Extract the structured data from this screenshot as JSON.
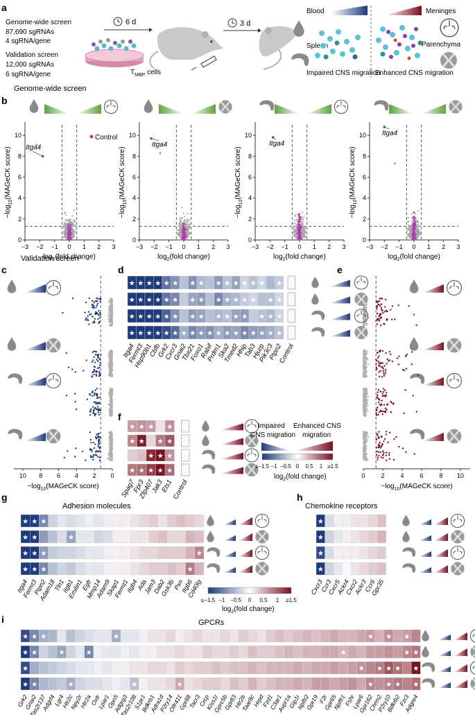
{
  "panels": {
    "a": {
      "letter": "a",
      "genome_screen": {
        "title": "Genome-wide screen",
        "line1": "87,690 sgRNAs",
        "line2": "4 sgRNA/gene"
      },
      "validation_screen": {
        "title": "Validation screen",
        "line1": "12,000 sgRNAs",
        "line2": "6 sgRNA/gene"
      },
      "timer1": "6 d",
      "timer2": "3 d",
      "cells_label_main": "T",
      "cells_label_sub": "MBP",
      "cells_label_tail": " cells",
      "blood": "Blood",
      "spleen": "Spleen",
      "meninges": "Meninges",
      "parenchyma": "Parenchyma",
      "impaired": "Impaired CNS migration",
      "enhanced": "Enhanced CNS migration"
    },
    "b": {
      "letter": "b",
      "section_title": "Genome-wide screen",
      "ylabel_prefix": "−log",
      "ylabel_sub": "10",
      "ylabel_suffix": "(MAGeCK score)",
      "xlabel_prefix": "log",
      "xlabel_sub": "2",
      "xlabel_suffix": "(fold change)",
      "legend_control": "Control",
      "highlight_gene": "Itga4"
    },
    "validation_title": "Validation screen",
    "c": {
      "letter": "c",
      "xlabel_prefix": "−log",
      "xlabel_sub": "10",
      "xlabel_suffix": "(MAGeCK score)"
    },
    "d": {
      "letter": "d",
      "genes": [
        "Itga4",
        "Fermt3",
        "Hsp90b1",
        "Cbfb",
        "Grk2",
        "Cxcr3",
        "Gnai2",
        "Tbx21",
        "Foxo1",
        "Rabif",
        "Prdm1",
        "Ska2",
        "Tmed2",
        "Hhip",
        "Tab3",
        "Hjurp",
        "Pik3c3",
        "Ptpn2"
      ],
      "control": "Control"
    },
    "e": {
      "letter": "e",
      "xlabel_prefix": "−log",
      "xlabel_sub": "10",
      "xlabel_suffix": "(MAGeCK score)"
    },
    "f": {
      "letter": "f",
      "genes": [
        "Spag7",
        "Fpr3",
        "Zfp407",
        "Jak3",
        "Ets1"
      ],
      "control": "Control"
    },
    "legend": {
      "impaired_line1": "Impaired",
      "impaired_line2": "CNS migration",
      "enhanced_line1": "Enhanced CNS",
      "enhanced_line2": "migration",
      "ticks": [
        "≤−1.5",
        "−1",
        "−0.5",
        "0",
        "0.5",
        "1",
        "≥1.5"
      ],
      "label_prefix": "log",
      "label_sub": "2",
      "label_suffix": "(fold change)"
    },
    "g": {
      "letter": "g",
      "title": "Adhesion molecules",
      "genes": [
        "Itga4",
        "Fermt3",
        "Ptpn2",
        "Adam18",
        "Tln1",
        "Itgb1",
        "Emilin1",
        "Egfr",
        "Mmp14",
        "Adam9",
        "Skap1",
        "Fermt1",
        "Itgb4",
        "Ada",
        "Jam3",
        "Dab2",
        "Gsk3b",
        "Pxn",
        "Itgb6",
        "Cd40lg"
      ],
      "legend_ticks": [
        "≤−1.5",
        "−1",
        "−0.5",
        "0",
        "0.5",
        "1",
        "≥1.5"
      ],
      "legend_label_prefix": "log",
      "legend_label_sub": "2",
      "legend_label_suffix": "(fold change)"
    },
    "h": {
      "letter": "h",
      "title": "Chemokine receptors",
      "genes": [
        "Cxcr3",
        "Ccr3",
        "Cxcr5",
        "Ackr4",
        "Cxcr2",
        "Ackr3",
        "Ccr6",
        "Gpr35"
      ]
    },
    "i": {
      "letter": "i",
      "title": "GPCRs",
      "genes": [
        "Grk2",
        "Gnai2",
        "Tas2r137",
        "Adgrf4",
        "Lgr4",
        "Htr2c",
        "Npy2r",
        "Htr2a",
        "Oxtr",
        "Lpar1",
        "Opn5",
        "Adgrg3",
        "Tas2r108",
        "S1pr1",
        "Bdkrb1",
        "Adra1d",
        "P2ry14",
        "Olfr411",
        "Gpr88",
        "Tacr3",
        "Crcp",
        "Kiss1r",
        "Gprc5b",
        "Gpr83",
        "Htr2b",
        "Taar8c",
        "Hrpd",
        "Fzd1",
        "C3ar1",
        "Avpr1a",
        "Glp1r",
        "Npffr2",
        "Gpr19",
        "F2r",
        "Gpr65",
        "Npffr1",
        "Fshr",
        "Lpar6",
        "Gpr162",
        "Chrm2",
        "P2ry10",
        "Bdkrb2",
        "Fzr3",
        "Adgre4"
      ]
    }
  },
  "heatmaps": {
    "d": [
      [
        -1,
        -1,
        -1,
        -1,
        -0.7,
        -0.55,
        -0.3,
        -0.55,
        -0.35,
        -0.3,
        -0.5,
        -0.3,
        -0.45,
        -0.2,
        -0.3,
        -0.2,
        -0.35,
        -0.25
      ],
      [
        -1,
        -1,
        -1,
        -1,
        -0.7,
        -0.6,
        -0.25,
        -0.45,
        -0.5,
        -0.3,
        -0.6,
        -0.4,
        -0.35,
        -0.25,
        -0.2,
        -0.3,
        -0.3,
        -0.2
      ],
      [
        -1,
        -1,
        -1,
        -1,
        -0.8,
        -0.55,
        -0.3,
        -0.5,
        -0.45,
        -0.3,
        -0.35,
        -0.3,
        -0.45,
        -0.5,
        -0.25,
        -0.3,
        -0.35,
        -0.2
      ],
      [
        -1,
        -1,
        -1,
        -1,
        -0.9,
        -0.75,
        -0.4,
        -0.6,
        -0.5,
        -0.55,
        -0.4,
        -0.5,
        -0.45,
        -0.6,
        -0.5,
        -0.45,
        -0.4,
        -0.3
      ]
    ],
    "d_stars": [
      [
        1,
        1,
        1,
        1,
        1,
        1,
        0,
        1,
        1,
        0,
        1,
        1,
        1,
        1,
        1,
        1,
        0,
        1
      ],
      [
        1,
        1,
        1,
        1,
        1,
        1,
        0,
        1,
        1,
        0,
        1,
        1,
        1,
        1,
        1,
        0,
        1,
        1
      ],
      [
        1,
        1,
        1,
        1,
        1,
        1,
        0,
        1,
        1,
        0,
        1,
        1,
        1,
        1,
        0,
        1,
        1,
        1
      ],
      [
        1,
        1,
        1,
        1,
        1,
        1,
        1,
        1,
        1,
        1,
        1,
        1,
        1,
        1,
        1,
        1,
        1,
        1
      ]
    ],
    "f": [
      [
        0.4,
        0.45,
        0.4,
        0.1,
        0.45
      ],
      [
        0.5,
        0.95,
        0.15,
        0.55,
        0.7
      ],
      [
        0.2,
        0.25,
        0.9,
        1,
        0.45
      ],
      [
        0.55,
        0.6,
        0.8,
        1,
        0.6
      ]
    ],
    "f_stars": [
      [
        1,
        1,
        1,
        0,
        1
      ],
      [
        1,
        1,
        0,
        1,
        1
      ],
      [
        0,
        0,
        1,
        1,
        1
      ],
      [
        1,
        1,
        1,
        1,
        1
      ]
    ],
    "g": [
      [
        -1,
        -1,
        -0.6,
        -0.2,
        -0.1,
        -0.15,
        -0.1,
        -0.05,
        -0.1,
        -0.05,
        0.05,
        0.05,
        0.1,
        0.15,
        0.2,
        0.1,
        0.2,
        0.25,
        0.2,
        0.15
      ],
      [
        -1,
        -1,
        -0.5,
        -0.3,
        -0.15,
        -0.45,
        -0.1,
        -0.1,
        -0.2,
        -0.15,
        0.05,
        0.05,
        0.1,
        0.1,
        0.2,
        0.25,
        0.15,
        0.15,
        0.3,
        0.25
      ],
      [
        -1,
        -1,
        -0.5,
        -0.25,
        -0.2,
        -0.2,
        -0.15,
        -0.1,
        -0.1,
        -0.05,
        0.05,
        0.05,
        0.1,
        0.15,
        0.15,
        0.2,
        0.2,
        0.2,
        0.3,
        0.5
      ],
      [
        -1,
        -1,
        -0.6,
        -0.3,
        -0.2,
        -0.25,
        -0.15,
        -0.1,
        -0.1,
        -0.05,
        0.05,
        0.05,
        0.1,
        0.15,
        0.2,
        0.2,
        0.25,
        0.2,
        0.55,
        0.3
      ]
    ],
    "g_stars": [
      [
        1,
        1,
        1,
        0,
        0,
        0,
        0,
        0,
        0,
        0,
        0,
        0,
        0,
        0,
        0,
        0,
        0,
        0,
        0,
        0
      ],
      [
        1,
        1,
        0,
        0,
        0,
        1,
        0,
        0,
        0,
        0,
        0,
        0,
        0,
        0,
        0,
        0,
        0,
        0,
        0,
        0
      ],
      [
        1,
        1,
        1,
        0,
        0,
        0,
        0,
        0,
        0,
        0,
        0,
        0,
        0,
        0,
        0,
        0,
        0,
        0,
        0,
        1
      ],
      [
        1,
        1,
        1,
        0,
        0,
        0,
        0,
        0,
        0,
        0,
        0,
        0,
        0,
        0,
        0,
        0,
        0,
        0,
        1,
        0
      ]
    ],
    "h": [
      [
        -1,
        -0.15,
        -0.05,
        0.05,
        0.1,
        0.1,
        0.15,
        0.25
      ],
      [
        -1,
        -0.2,
        -0.1,
        0.05,
        0.1,
        0.15,
        0.2,
        0.3
      ],
      [
        -0.9,
        -0.15,
        -0.05,
        0.05,
        0.05,
        0.1,
        0.15,
        0.2
      ],
      [
        -1,
        -0.2,
        -0.1,
        0.0,
        0.1,
        0.15,
        0.2,
        0.25
      ]
    ],
    "h_stars": [
      [
        1,
        0,
        0,
        0,
        0,
        0,
        0,
        0
      ],
      [
        1,
        0,
        0,
        0,
        0,
        0,
        0,
        0
      ],
      [
        1,
        0,
        0,
        0,
        0,
        0,
        0,
        0
      ],
      [
        1,
        0,
        0,
        0,
        0,
        0,
        0,
        0
      ]
    ],
    "i": [
      [
        -0.9,
        -0.6,
        -0.4,
        -0.35,
        -0.1,
        -0.3,
        -0.2,
        -0.15,
        -0.1,
        -0.1,
        -0.4,
        -0.1,
        -0.1,
        -0.05,
        0.1,
        0.1,
        0.15,
        0.05,
        0.1,
        0.15,
        0.1,
        0.1,
        0.15,
        0.1,
        0.2,
        0.15,
        0.1,
        0.2,
        0.25,
        0.2,
        0.25,
        0.3,
        0.25,
        0.3,
        0.35,
        0.3,
        0.3,
        0.35,
        0.4,
        0.3,
        0.45,
        0.35,
        0.4,
        0.5
      ],
      [
        -1,
        -0.6,
        -0.2,
        -0.3,
        -0.45,
        -0.2,
        -0.1,
        -0.6,
        -0.05,
        -0.1,
        -0.1,
        -0.05,
        -0.1,
        0.05,
        0.05,
        0.1,
        0.1,
        0.15,
        0.1,
        0.1,
        0.2,
        0.15,
        0.15,
        0.2,
        0.15,
        0.25,
        0.2,
        0.2,
        0.25,
        0.3,
        0.25,
        0.3,
        0.3,
        0.35,
        0.35,
        0.3,
        0.35,
        0.3,
        0.4,
        0.4,
        0.45,
        0.4,
        0.5,
        0.55
      ],
      [
        -0.9,
        -0.4,
        -0.3,
        -0.25,
        -0.2,
        -0.15,
        -0.1,
        -0.1,
        -0.05,
        -0.1,
        -0.05,
        0.05,
        0.1,
        0.1,
        0.15,
        0.15,
        0.1,
        0.2,
        0.15,
        0.2,
        0.2,
        0.25,
        0.2,
        0.25,
        0.25,
        0.3,
        0.25,
        0.3,
        0.3,
        0.3,
        0.35,
        0.3,
        0.35,
        0.35,
        0.4,
        0.35,
        0.4,
        0.45,
        0.5,
        0.55,
        0.7,
        0.6,
        0.5,
        1
      ],
      [
        -1,
        -0.6,
        -0.35,
        -0.3,
        -0.25,
        -0.4,
        -0.2,
        -0.15,
        -0.15,
        -0.1,
        -0.05,
        -0.1,
        -0.3,
        0.05,
        0.1,
        0.1,
        0.15,
        0.35,
        0.1,
        0.15,
        0.2,
        0.2,
        0.15,
        0.25,
        0.2,
        0.3,
        0.2,
        0.25,
        0.3,
        0.3,
        0.35,
        0.3,
        0.4,
        0.4,
        0.35,
        0.4,
        0.45,
        0.35,
        0.5,
        0.45,
        0.5,
        0.55,
        0.5,
        0.6
      ]
    ],
    "i_stars": [
      [
        1,
        1,
        1,
        0,
        0,
        0,
        0,
        0,
        0,
        0,
        1,
        0,
        0,
        0,
        0,
        0,
        0,
        0,
        0,
        0,
        0,
        0,
        0,
        0,
        0,
        0,
        0,
        0,
        0,
        0,
        0,
        0,
        0,
        0,
        0,
        0,
        0,
        0,
        1,
        0,
        1,
        0,
        1,
        0
      ],
      [
        1,
        1,
        0,
        0,
        1,
        0,
        0,
        1,
        0,
        0,
        0,
        0,
        0,
        0,
        0,
        0,
        0,
        0,
        0,
        0,
        0,
        0,
        0,
        0,
        0,
        0,
        0,
        0,
        0,
        0,
        0,
        0,
        0,
        0,
        0,
        1,
        0,
        0,
        0,
        0,
        0,
        0,
        1,
        1
      ],
      [
        1,
        0,
        0,
        0,
        0,
        0,
        0,
        0,
        0,
        0,
        0,
        0,
        0,
        0,
        0,
        0,
        0,
        0,
        0,
        0,
        0,
        0,
        0,
        0,
        0,
        0,
        0,
        0,
        0,
        0,
        0,
        0,
        0,
        0,
        0,
        0,
        0,
        1,
        0,
        1,
        1,
        1,
        0,
        1
      ],
      [
        1,
        1,
        0,
        0,
        0,
        1,
        0,
        0,
        0,
        0,
        0,
        0,
        1,
        0,
        0,
        0,
        0,
        1,
        0,
        0,
        0,
        0,
        0,
        0,
        0,
        0,
        0,
        0,
        0,
        0,
        0,
        0,
        0,
        0,
        0,
        0,
        0,
        0,
        1,
        0,
        1,
        1,
        0,
        1
      ]
    ]
  },
  "chart_data": [
    {
      "type": "scatter",
      "title": "Blood vs Meninges",
      "xlabel": "log2(fold change)",
      "ylabel": "−log10(MAGeCK score)",
      "xlim": [
        -3,
        3
      ],
      "ylim": [
        0,
        11
      ],
      "xticks": [
        -3,
        -2,
        -1,
        0,
        1,
        2,
        3
      ],
      "yticks": [
        0,
        2,
        4,
        6,
        8,
        10
      ],
      "highlight": {
        "name": "Itga4",
        "x": -1.8,
        "y": 8.0
      },
      "extra_points": [
        {
          "x": -2.2,
          "y": 9.1
        }
      ]
    },
    {
      "type": "scatter",
      "title": "Blood vs Parenchyma",
      "xlabel": "log2(fold change)",
      "ylabel": "−log10(MAGeCK score)",
      "xlim": [
        -3,
        3
      ],
      "ylim": [
        0,
        11
      ],
      "xticks": [
        -3,
        -2,
        -1,
        0,
        1,
        2,
        3
      ],
      "yticks": [
        0,
        2,
        4,
        6,
        8,
        10
      ],
      "highlight": {
        "name": "Itga4",
        "x": -2.2,
        "y": 9.7
      },
      "extra_points": [
        {
          "x": -1.6,
          "y": 8.3
        }
      ]
    },
    {
      "type": "scatter",
      "title": "Spleen vs Meninges",
      "xlabel": "log2(fold change)",
      "ylabel": "−log10(MAGeCK score)",
      "xlim": [
        -3,
        3
      ],
      "ylim": [
        0,
        11
      ],
      "xticks": [
        -3,
        -2,
        -1,
        0,
        1,
        2,
        3
      ],
      "yticks": [
        0,
        2,
        4,
        6,
        8,
        10
      ],
      "highlight": {
        "name": "Itga4",
        "x": -1.8,
        "y": 9.8
      },
      "extra_points": []
    },
    {
      "type": "scatter",
      "title": "Spleen vs Parenchyma",
      "xlabel": "log2(fold change)",
      "ylabel": "−log10(MAGeCK score)",
      "xlim": [
        -3,
        3
      ],
      "ylim": [
        0,
        11
      ],
      "xticks": [
        -3,
        -2,
        -1,
        0,
        1,
        2,
        3
      ],
      "yticks": [
        0,
        2,
        4,
        6,
        8,
        10
      ],
      "highlight": {
        "name": "Itga4",
        "x": -2.0,
        "y": 10.8
      },
      "extra_points": [
        {
          "x": -1.3,
          "y": 7.3
        }
      ]
    }
  ],
  "colors": {
    "blue_dark": "#1f3a7a",
    "red_dark": "#7a1020",
    "green": "#5fa33e",
    "magenta": "#b23cb0",
    "gray": "#9e9e9e"
  }
}
